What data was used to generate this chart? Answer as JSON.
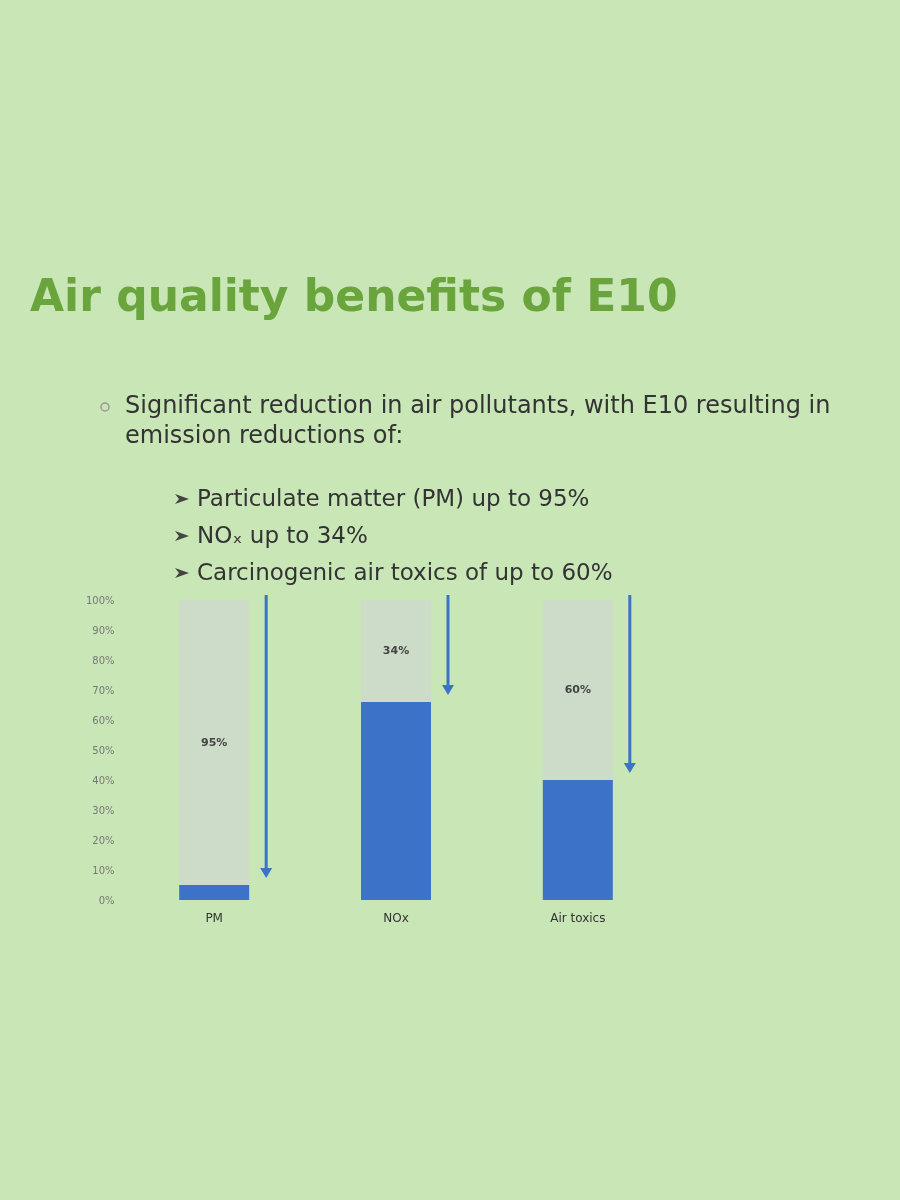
{
  "chart_data": {
    "type": "bar",
    "title": "Air quality benefits of E10",
    "subtitle": "Significant reduction in air pollutants, with E10 resulting in emission reductions of:",
    "annotations": [
      "Particulate matter (PM) up to 95%",
      "NOₓ up to 34%",
      "Carcinogenic air toxics of up to 60%"
    ],
    "categories": [
      "PM",
      "NOx",
      "Air toxics"
    ],
    "stacked": true,
    "series": [
      {
        "color": "#3d72c9",
        "values": [
          5,
          66,
          40
        ]
      },
      {
        "color": "#cddbc9",
        "values": [
          95,
          34,
          60
        ],
        "value_labels": [
          "95%",
          "34%",
          "60%"
        ]
      }
    ],
    "ylim": [
      0,
      100
    ],
    "yticks": [
      {
        "value": 0,
        "label": "0%"
      },
      {
        "value": 10,
        "label": "10%"
      },
      {
        "value": 20,
        "label": "20%"
      },
      {
        "value": 30,
        "label": "30%"
      },
      {
        "value": 40,
        "label": "40%"
      },
      {
        "value": 50,
        "label": "50%"
      },
      {
        "value": 60,
        "label": "60%"
      },
      {
        "value": 70,
        "label": "70%"
      },
      {
        "value": 80,
        "label": "80%"
      },
      {
        "value": 90,
        "label": "90%"
      },
      {
        "value": 100,
        "label": "100%"
      }
    ],
    "grid": false
  }
}
